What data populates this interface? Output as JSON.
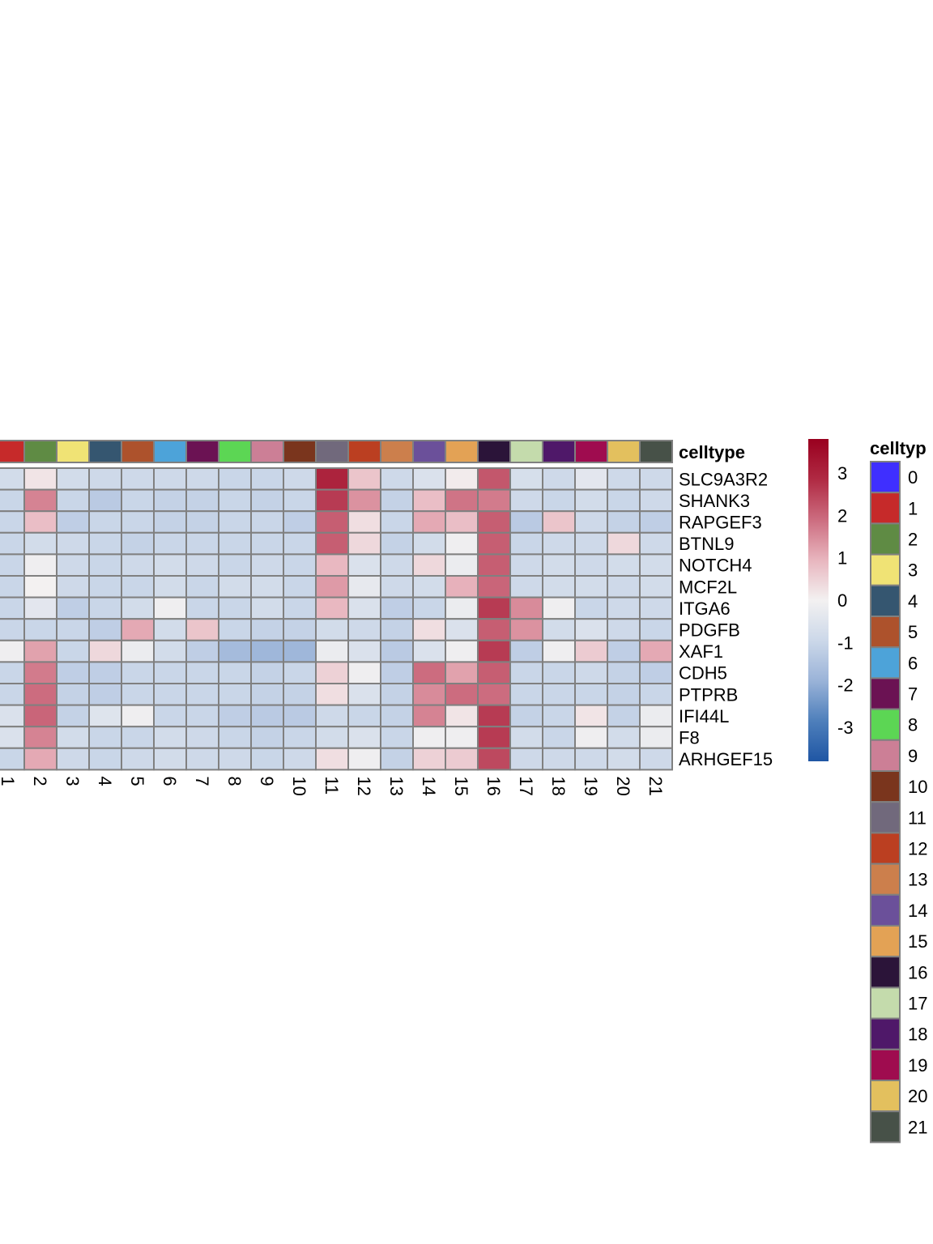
{
  "chart_data": {
    "type": "heatmap",
    "annotation_title": "celltype",
    "legend_title": "celltyp",
    "columns": [
      "1",
      "2",
      "3",
      "4",
      "5",
      "6",
      "7",
      "8",
      "9",
      "10",
      "11",
      "12",
      "13",
      "14",
      "15",
      "16",
      "17",
      "18",
      "19",
      "20",
      "21"
    ],
    "rows": [
      "SLC9A3R2",
      "SHANK3",
      "RAPGEF3",
      "BTNL9",
      "NOTCH4",
      "MCF2L",
      "ITGA6",
      "PDGFB",
      "XAF1",
      "CDH5",
      "PTPRB",
      "IFI44L",
      "F8",
      "ARHGEF15"
    ],
    "values": [
      [
        -0.8,
        0.2,
        -0.8,
        -0.9,
        -0.9,
        -0.9,
        -0.9,
        -1.0,
        -1.0,
        -0.9,
        3.0,
        0.7,
        -0.9,
        -0.6,
        0.1,
        2.2,
        -0.7,
        -0.9,
        -0.4,
        -0.9,
        -0.9
      ],
      [
        -1.0,
        1.6,
        -1.0,
        -1.3,
        -1.0,
        -1.1,
        -1.1,
        -1.0,
        -1.1,
        -1.0,
        2.6,
        1.4,
        -1.1,
        0.8,
        1.8,
        1.7,
        -0.9,
        -1.0,
        -0.8,
        -1.0,
        -0.9
      ],
      [
        -1.0,
        0.8,
        -1.2,
        -1.0,
        -1.0,
        -1.1,
        -1.1,
        -1.0,
        -1.0,
        -1.2,
        2.1,
        0.3,
        -1.0,
        1.1,
        0.8,
        2.1,
        -1.3,
        0.7,
        -0.9,
        -1.1,
        -1.2
      ],
      [
        -1.0,
        -0.8,
        -0.9,
        -1.0,
        -1.1,
        -1.0,
        -1.0,
        -1.0,
        -1.0,
        -1.0,
        2.1,
        0.4,
        -1.1,
        -0.8,
        -0.1,
        2.1,
        -1.0,
        -0.9,
        -0.9,
        0.4,
        -0.9
      ],
      [
        -1.0,
        -0.1,
        -0.9,
        -1.0,
        -0.9,
        -0.8,
        -0.9,
        -1.0,
        -0.9,
        -1.0,
        0.9,
        -0.6,
        -0.9,
        0.4,
        -0.2,
        2.1,
        -0.9,
        -0.8,
        -0.9,
        -0.8,
        -0.8
      ],
      [
        -1.0,
        0.0,
        -0.9,
        -1.0,
        -1.0,
        -0.8,
        -1.0,
        -0.8,
        -0.8,
        -1.0,
        1.3,
        -0.3,
        -0.9,
        -0.8,
        1.0,
        2.0,
        -0.9,
        -0.8,
        -0.8,
        -0.9,
        -0.8
      ],
      [
        -1.0,
        -0.4,
        -1.2,
        -1.0,
        -0.8,
        -0.1,
        -1.0,
        -1.0,
        -0.8,
        -1.0,
        0.9,
        -0.6,
        -1.2,
        -1.0,
        -0.2,
        2.6,
        1.5,
        -0.1,
        -1.0,
        -0.9,
        -0.9
      ],
      [
        -1.0,
        -1.0,
        -1.0,
        -1.2,
        1.1,
        -0.8,
        0.7,
        -1.0,
        -1.1,
        -1.1,
        -0.8,
        -0.9,
        -1.1,
        0.3,
        -0.6,
        2.1,
        1.4,
        -0.8,
        -0.6,
        -0.9,
        -1.0
      ],
      [
        -0.1,
        1.2,
        -1.0,
        0.4,
        -0.2,
        -0.8,
        -1.2,
        -1.7,
        -1.8,
        -1.8,
        -0.2,
        -0.6,
        -1.3,
        -0.6,
        -0.1,
        2.6,
        -1.2,
        -0.1,
        0.6,
        -1.2,
        1.1
      ],
      [
        -1.0,
        1.7,
        -1.2,
        -1.2,
        -1.0,
        -1.0,
        -1.0,
        -1.0,
        -1.1,
        -1.0,
        0.5,
        -0.1,
        -1.2,
        1.9,
        1.2,
        2.1,
        -1.0,
        -1.0,
        -0.9,
        -1.1,
        -1.2
      ],
      [
        -1.0,
        1.9,
        -1.1,
        -1.2,
        -1.0,
        -1.0,
        -1.0,
        -1.0,
        -1.1,
        -1.1,
        0.3,
        -0.6,
        -1.1,
        1.5,
        1.9,
        1.9,
        -1.0,
        -1.0,
        -1.0,
        -1.1,
        -1.0
      ],
      [
        -0.6,
        2.0,
        -1.1,
        -0.5,
        -0.1,
        -1.0,
        -1.0,
        -1.2,
        -1.3,
        -1.3,
        -0.9,
        -1.0,
        -1.1,
        1.6,
        0.2,
        2.6,
        -1.1,
        -1.0,
        0.2,
        -1.1,
        -0.2
      ],
      [
        -0.6,
        1.6,
        -0.8,
        -1.0,
        -1.0,
        -0.8,
        -0.9,
        -1.0,
        -1.1,
        -1.0,
        -0.8,
        -0.6,
        -1.0,
        -0.1,
        -0.1,
        2.6,
        -0.8,
        -1.0,
        -0.1,
        -0.8,
        -0.2
      ],
      [
        -1.0,
        1.1,
        -0.9,
        -1.0,
        -0.9,
        -0.8,
        -0.9,
        -0.9,
        -1.0,
        -0.9,
        0.3,
        -0.1,
        -1.1,
        0.5,
        0.6,
        2.4,
        -0.9,
        -0.9,
        -0.9,
        -0.8,
        -0.9
      ]
    ],
    "color_scale": {
      "min": -3.8,
      "max": 3.8,
      "ticks": [
        -3,
        -2,
        -1,
        0,
        1,
        2,
        3
      ],
      "tick_labels": [
        "-3",
        "-2",
        "-1",
        "0",
        "1",
        "2",
        "3"
      ],
      "stops": [
        "#1f56a4",
        "#4e7fbb",
        "#9ab3d8",
        "#ccd8e9",
        "#f3f1f1",
        "#e8b5be",
        "#cc6c7f",
        "#b02a43",
        "#99001f"
      ]
    },
    "celltype_colors": {
      "0": "#3f2fff",
      "1": "#c62a2a",
      "2": "#5f8b44",
      "3": "#f0e375",
      "4": "#355670",
      "5": "#ad522c",
      "6": "#4da3d9",
      "7": "#6b1253",
      "8": "#5cd654",
      "9": "#cc7f96",
      "10": "#7a351d",
      "11": "#71697c",
      "12": "#bb3f21",
      "13": "#cc7f4c",
      "14": "#6b509a",
      "15": "#e3a255",
      "16": "#2b1439",
      "17": "#c4dbac",
      "18": "#4f1869",
      "19": "#9f0c4f",
      "20": "#e3c05e",
      "21": "#475148"
    },
    "legend_levels": [
      "0",
      "1",
      "2",
      "3",
      "4",
      "5",
      "6",
      "7",
      "8",
      "9",
      "10",
      "11",
      "12",
      "13",
      "14",
      "15",
      "16",
      "17",
      "18",
      "19",
      "20",
      "21"
    ]
  }
}
